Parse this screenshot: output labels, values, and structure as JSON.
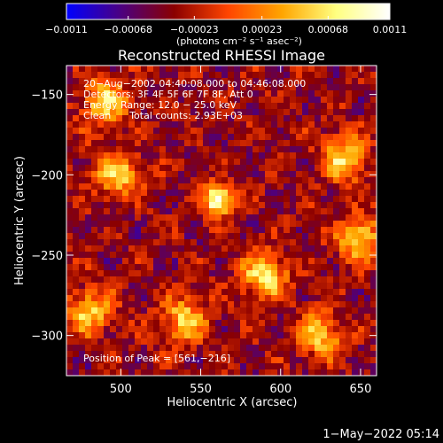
{
  "chart_data": {
    "type": "heatmap",
    "title": "Reconstructed RHESSI Image",
    "xlabel": "Heliocentric X (arcsec)",
    "ylabel": "Heliocentric Y (arcsec)",
    "xlim": [
      466,
      660
    ],
    "ylim": [
      -325,
      -132
    ],
    "x_ticks": [
      500,
      550,
      600,
      650
    ],
    "x_tick_labels": [
      "500",
      "550",
      "600",
      "650"
    ],
    "y_ticks": [
      -150,
      -200,
      -250,
      -300
    ],
    "y_tick_labels": [
      "−150",
      "−200",
      "−250",
      "−300"
    ],
    "colorbar": {
      "range": [
        -0.0011,
        0.0011
      ],
      "ticks": [
        -0.0011,
        -0.00068,
        -0.00023,
        0.00023,
        0.00068,
        0.0011
      ],
      "tick_labels": [
        "−0.0011",
        "−0.00068",
        "−0.00023",
        "0.00023",
        "0.00068",
        "0.0011"
      ],
      "unit_label": "(photons cm⁻² s⁻¹ asec⁻²)",
      "colors": [
        "#0000ff",
        "#4b0082",
        "#8b0000",
        "#ff4500",
        "#ffa500",
        "#ffff80",
        "#ffffff"
      ]
    },
    "annotations": [
      "20−Aug−2002 04:40:08.000 to 04:46:08.000",
      "Detectors: 3F 4F 5F 6F 7F 8F, Att 0",
      "Energy Range: 12.0 − 25.0 keV",
      "Clean      Total counts: 2.93E+03"
    ],
    "peak_label": "Position of Peak = [561,−216]",
    "peak": [
      561,
      -216
    ],
    "sources": [
      {
        "x": 561,
        "y": -216,
        "value": 0.0011
      },
      {
        "x": 590,
        "y": -263,
        "value": 0.00068
      },
      {
        "x": 490,
        "y": -155,
        "value": 0.0006
      },
      {
        "x": 498,
        "y": -200,
        "value": 0.00055
      },
      {
        "x": 640,
        "y": -190,
        "value": 0.0006
      },
      {
        "x": 650,
        "y": -240,
        "value": 0.0006
      },
      {
        "x": 480,
        "y": -285,
        "value": 0.0005
      },
      {
        "x": 540,
        "y": -290,
        "value": 0.0005
      },
      {
        "x": 625,
        "y": -300,
        "value": 0.0005
      }
    ]
  },
  "footer": {
    "timestamp": "1−May−2022 05:14"
  }
}
